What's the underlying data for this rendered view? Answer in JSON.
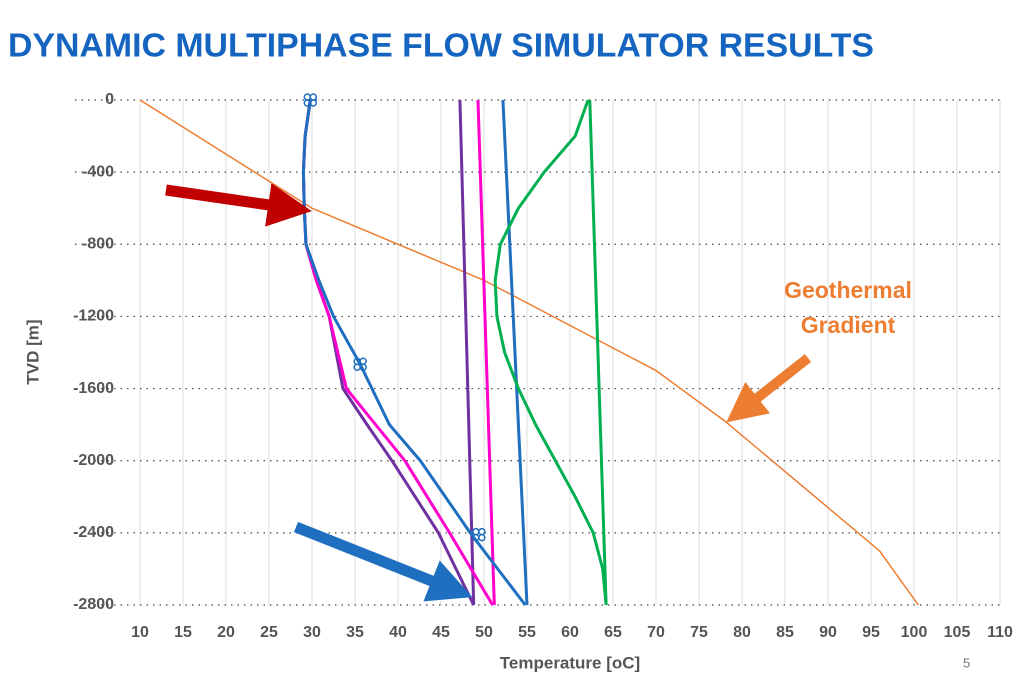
{
  "chart_data": {
    "type": "line",
    "title": "DYNAMIC MULTIPHASE FLOW SIMULATOR RESULTS",
    "x_label": "Temperature [oC]",
    "y_label": "TVD [m]",
    "xlim": [
      10,
      110
    ],
    "ylim": [
      -2800,
      0
    ],
    "xticks": [
      10,
      15,
      20,
      25,
      30,
      35,
      40,
      45,
      50,
      55,
      60,
      65,
      70,
      75,
      80,
      85,
      90,
      95,
      100,
      105,
      110
    ],
    "yticks": [
      0,
      -400,
      -800,
      -1200,
      -1600,
      -2000,
      -2400,
      -2800
    ],
    "grid": true,
    "annotation_lines": [
      "Geothermal",
      "Gradient"
    ],
    "annotation_color": "#ed7d31",
    "page_number": "5",
    "series": [
      {
        "color": "#ed7d31",
        "x": [
          10,
          30,
          50,
          70,
          78,
          90,
          96,
          100.5
        ],
        "y": [
          0,
          -600,
          -1000,
          -1500,
          -1780,
          -2260,
          -2500,
          -2800
        ]
      },
      {
        "color": "#7030a0",
        "x": [
          47.2,
          48.8
        ],
        "y": [
          0,
          -2800
        ]
      },
      {
        "color": "#ff00cc",
        "x": [
          49.3,
          51.2
        ],
        "y": [
          0,
          -2800
        ]
      },
      {
        "color": "#1f6fc0",
        "x": [
          52.2,
          55
        ],
        "y": [
          0,
          -2800
        ]
      },
      {
        "color": "#00b050",
        "x": [
          62.3,
          64.2
        ],
        "y": [
          0,
          -2800
        ]
      },
      {
        "color": "#00b050",
        "x": [
          62.1,
          60.6,
          57,
          54,
          51.9,
          51.3,
          51.5,
          52.4,
          54,
          56,
          58.3,
          60.6,
          62.7,
          63.8,
          64.2
        ],
        "y": [
          0,
          -200,
          -400,
          -600,
          -800,
          -1000,
          -1200,
          -1400,
          -1600,
          -1800,
          -2000,
          -2200,
          -2400,
          -2600,
          -2800
        ]
      },
      {
        "color": "#7030a0",
        "x": [
          29.8,
          29.2,
          29.0,
          29.1,
          29.3,
          30.5,
          32,
          33.6,
          36.4,
          39.3,
          42,
          44.7,
          48.8
        ],
        "y": [
          0,
          -200,
          -400,
          -600,
          -800,
          -1000,
          -1200,
          -1600,
          -1800,
          -2000,
          -2200,
          -2400,
          -2800
        ]
      },
      {
        "color": "#ff00cc",
        "x": [
          29.8,
          29.2,
          29.0,
          29.1,
          29.3,
          30.5,
          32,
          34,
          37.4,
          40.8,
          43.4,
          46,
          51
        ],
        "y": [
          0,
          -200,
          -400,
          -600,
          -800,
          -1000,
          -1200,
          -1600,
          -1800,
          -2000,
          -2200,
          -2400,
          -2800
        ]
      },
      {
        "color": "#1f6fc0",
        "x": [
          29.8,
          29.2,
          29.0,
          29.1,
          29.3,
          30.8,
          32.5,
          35.6,
          39,
          42.6,
          45.5,
          48.4,
          54.8
        ],
        "y": [
          0,
          -200,
          -400,
          -600,
          -800,
          -1000,
          -1200,
          -1465,
          -1800,
          -2000,
          -2200,
          -2400,
          -2800
        ]
      }
    ],
    "markers": {
      "color": "#1f6fc0",
      "x": [
        29.8,
        35.6,
        49.4
      ],
      "y": [
        0,
        -1465,
        -2410
      ]
    }
  }
}
